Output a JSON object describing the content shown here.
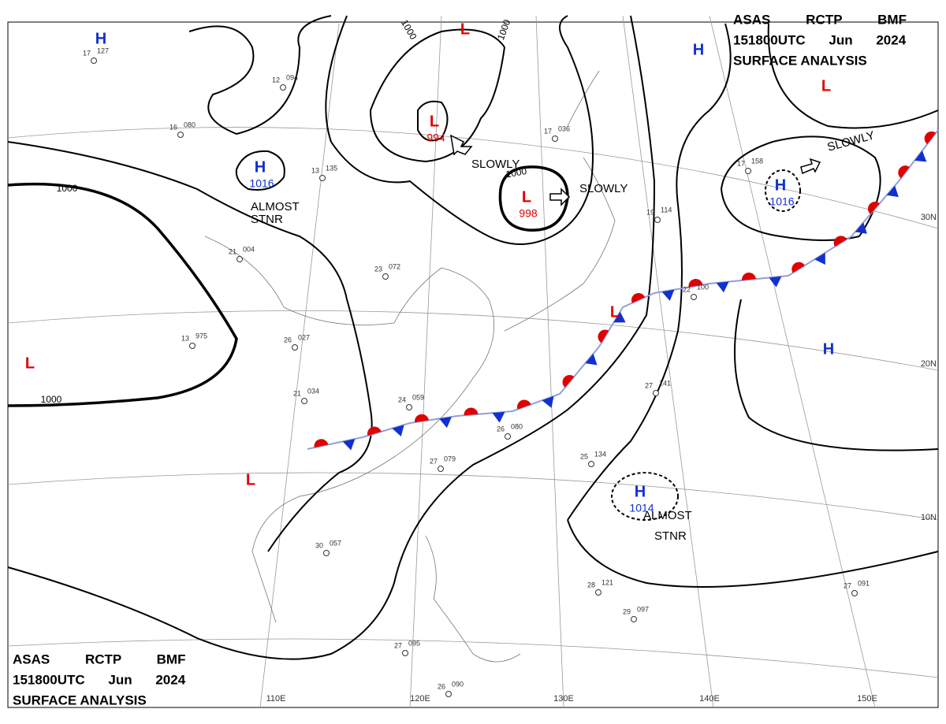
{
  "header_top_right": {
    "line1": "ASAS RCTP BMF",
    "line2": "151800UTC Jun 2024",
    "line3": "SURFACE ANALYSIS"
  },
  "header_bottom_left": {
    "line1": "ASAS RCTP BMF",
    "line2": "151800UTC Jun 2024",
    "line3": "SURFACE ANALYSIS"
  },
  "pressure_centers": [
    {
      "symbol": "H"
    },
    {
      "symbol": "H",
      "value": "1016"
    },
    {
      "symbol": "L"
    },
    {
      "symbol": "L",
      "value": "994"
    },
    {
      "symbol": "L",
      "value": "998"
    },
    {
      "symbol": "H"
    },
    {
      "symbol": "L"
    },
    {
      "symbol": "H",
      "value": "1016"
    },
    {
      "symbol": "H"
    },
    {
      "symbol": "L"
    },
    {
      "symbol": "L"
    },
    {
      "symbol": "L"
    },
    {
      "symbol": "H",
      "value": "1014"
    }
  ],
  "annotations": [
    "SLOWLY",
    "SLOWLY",
    "SLOWLY",
    "ALMOST",
    "STNR",
    "ALMOST",
    "STNR"
  ],
  "isobar_labels": [
    "1000",
    "1000",
    "1000",
    "1000",
    "1000"
  ],
  "longitude_labels": [
    "110E",
    "120E",
    "130E",
    "140E",
    "150E"
  ],
  "latitude_labels": [
    "30N",
    "20N",
    "10N"
  ],
  "stations": [
    {
      "temp": "17",
      "pressure": "127"
    },
    {
      "temp": "12",
      "pressure": "094"
    },
    {
      "temp": "16",
      "pressure": "080"
    },
    {
      "temp": "13",
      "pressure": "135"
    },
    {
      "temp": "21",
      "pressure": "004"
    },
    {
      "temp": "13",
      "pressure": "975"
    },
    {
      "temp": "26",
      "pressure": "027"
    },
    {
      "temp": "21",
      "pressure": "034"
    },
    {
      "temp": "30",
      "pressure": "057"
    },
    {
      "temp": "27",
      "pressure": "079"
    },
    {
      "temp": "26",
      "pressure": "080"
    },
    {
      "temp": "27",
      "pressure": "141"
    },
    {
      "temp": "25",
      "pressure": "134"
    },
    {
      "temp": "28",
      "pressure": "121"
    },
    {
      "temp": "27",
      "pressure": "091"
    },
    {
      "temp": "17",
      "pressure": "036"
    },
    {
      "temp": "19",
      "pressure": "114"
    },
    {
      "temp": "22",
      "pressure": "100"
    },
    {
      "temp": "26",
      "pressure": "090"
    },
    {
      "temp": "27",
      "pressure": "095"
    },
    {
      "temp": "29",
      "pressure": "097"
    },
    {
      "temp": "17",
      "pressure": "158"
    },
    {
      "temp": "23",
      "pressure": "072"
    },
    {
      "temp": "24",
      "pressure": "059"
    }
  ]
}
